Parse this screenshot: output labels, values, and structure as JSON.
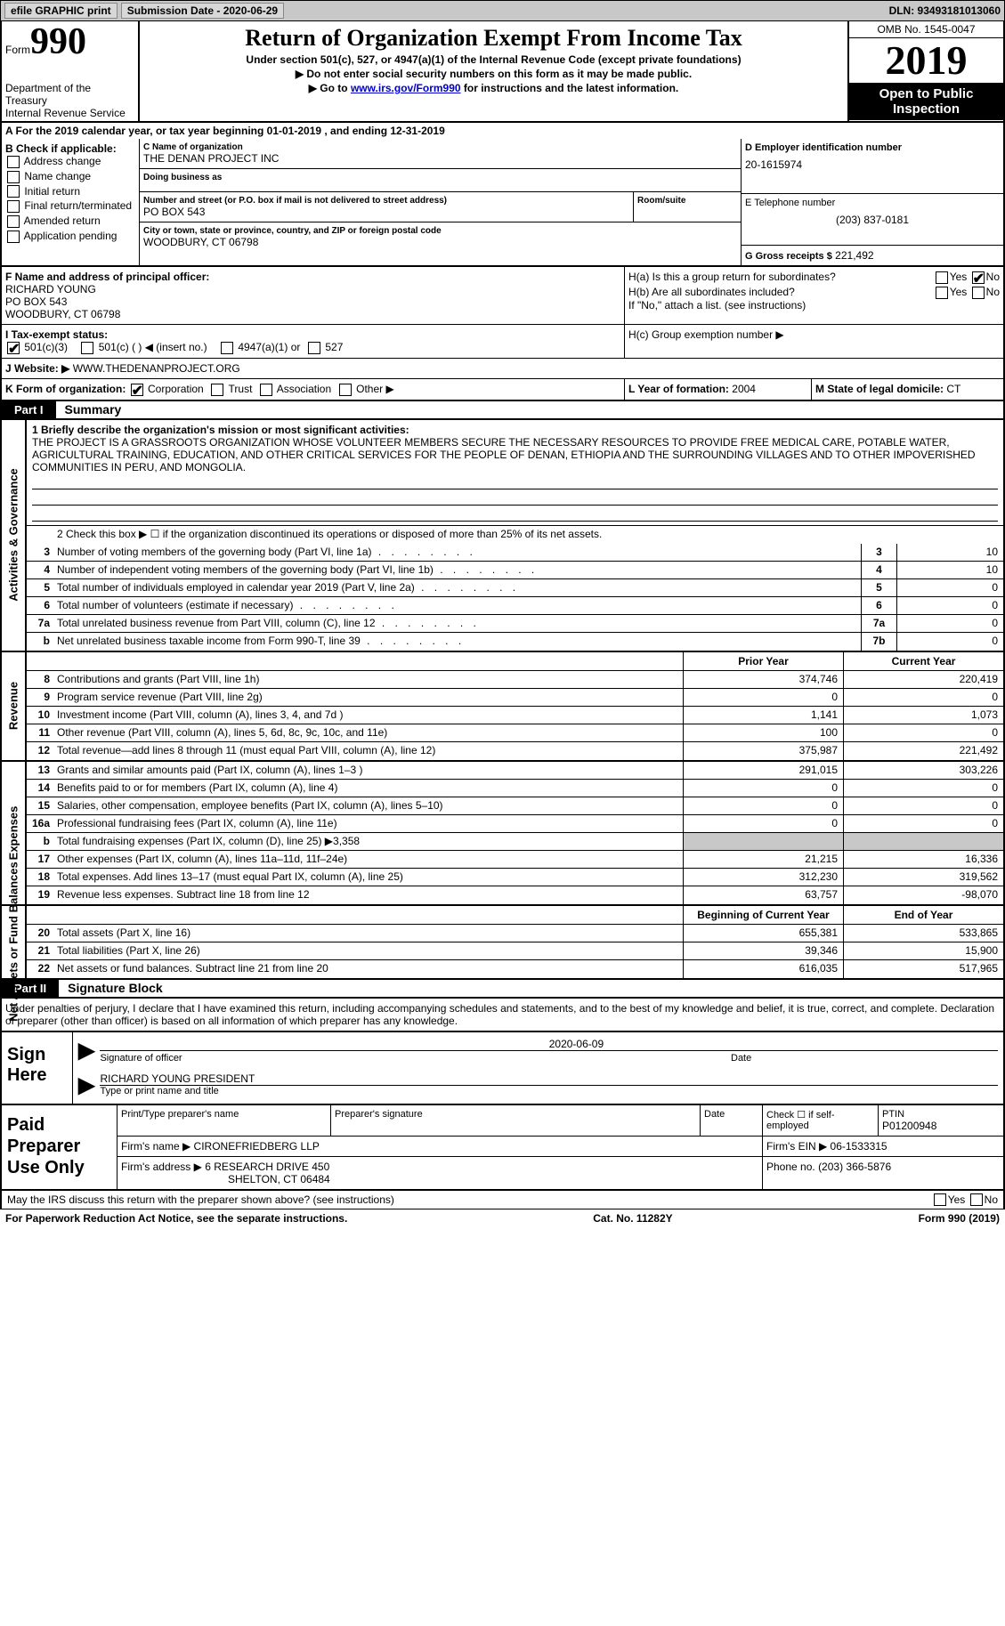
{
  "header_bar": {
    "efile": "efile GRAPHIC print",
    "submission": "Submission Date - 2020-06-29",
    "dln": "DLN: 93493181013060"
  },
  "top": {
    "form_word": "Form",
    "form_num": "990",
    "dept": "Department of the Treasury\nInternal Revenue Service",
    "title": "Return of Organization Exempt From Income Tax",
    "sub": "Under section 501(c), 527, or 4947(a)(1) of the Internal Revenue Code (except private foundations)",
    "instr1": "▶ Do not enter social security numbers on this form as it may be made public.",
    "instr2_pre": "▶ Go to ",
    "instr2_link": "www.irs.gov/Form990",
    "instr2_post": " for instructions and the latest information.",
    "omb": "OMB No. 1545-0047",
    "year": "2019",
    "open": "Open to Public Inspection"
  },
  "line_a": "A For the 2019 calendar year, or tax year beginning 01-01-2019   , and ending 12-31-2019",
  "box_b": {
    "title": "B Check if applicable:",
    "opts": [
      "Address change",
      "Name change",
      "Initial return",
      "Final return/terminated",
      "Amended return",
      "Application pending"
    ],
    "checked": []
  },
  "box_c": {
    "name_label": "C Name of organization",
    "name": "THE DENAN PROJECT INC",
    "dba_label": "Doing business as",
    "dba": "",
    "addr_label": "Number and street (or P.O. box if mail is not delivered to street address)",
    "room_label": "Room/suite",
    "addr": "PO BOX 543",
    "city_label": "City or town, state or province, country, and ZIP or foreign postal code",
    "city": "WOODBURY, CT  06798"
  },
  "box_d": {
    "label": "D Employer identification number",
    "val": "20-1615974"
  },
  "box_e": {
    "label": "E Telephone number",
    "val": "(203) 837-0181"
  },
  "box_g": {
    "label": "G Gross receipts $",
    "val": "221,492"
  },
  "box_f": {
    "label": "F Name and address of principal officer:",
    "name": "RICHARD YOUNG",
    "addr": "PO BOX 543",
    "city": "WOODBURY, CT  06798"
  },
  "box_h": {
    "a": "H(a)  Is this a group return for subordinates?",
    "a_yes": false,
    "a_no": true,
    "b": "H(b)  Are all subordinates included?",
    "b_yes": false,
    "b_no": false,
    "b_note": "If \"No,\" attach a list. (see instructions)",
    "c": "H(c)  Group exemption number ▶"
  },
  "row_i": {
    "label": "I   Tax-exempt status:",
    "c3": true,
    "opts": [
      "501(c)(3)",
      "501(c) (   ) ◀ (insert no.)",
      "4947(a)(1) or",
      "527"
    ]
  },
  "row_j": {
    "label": "J   Website: ▶",
    "val": "WWW.THEDENANPROJECT.ORG"
  },
  "row_k": {
    "label": "K Form of organization:",
    "corp": true,
    "opts": [
      "Corporation",
      "Trust",
      "Association",
      "Other ▶"
    ]
  },
  "row_l": {
    "label": "L Year of formation:",
    "val": "2004"
  },
  "row_m": {
    "label": "M State of legal domicile:",
    "val": "CT"
  },
  "part1": {
    "tab": "Part I",
    "title": "Summary",
    "line1_label": "1   Briefly describe the organization's mission or most significant activities:",
    "line1_text": "THE PROJECT IS A GRASSROOTS ORGANIZATION WHOSE VOLUNTEER MEMBERS SECURE THE NECESSARY RESOURCES TO PROVIDE FREE MEDICAL CARE, POTABLE WATER, AGRICULTURAL TRAINING, EDUCATION, AND OTHER CRITICAL SERVICES FOR THE PEOPLE OF DENAN, ETHIOPIA AND THE SURROUNDING VILLAGES AND TO OTHER IMPOVERISHED COMMUNITIES IN PERU, AND MONGOLIA.",
    "line2": "2   Check this box ▶ ☐  if the organization discontinued its operations or disposed of more than 25% of its net assets.",
    "gov_rows": [
      {
        "n": "3",
        "t": "Number of voting members of the governing body (Part VI, line 1a)",
        "c": "3",
        "v": "10"
      },
      {
        "n": "4",
        "t": "Number of independent voting members of the governing body (Part VI, line 1b)",
        "c": "4",
        "v": "10"
      },
      {
        "n": "5",
        "t": "Total number of individuals employed in calendar year 2019 (Part V, line 2a)",
        "c": "5",
        "v": "0"
      },
      {
        "n": "6",
        "t": "Total number of volunteers (estimate if necessary)",
        "c": "6",
        "v": "0"
      },
      {
        "n": "7a",
        "t": "Total unrelated business revenue from Part VIII, column (C), line 12",
        "c": "7a",
        "v": "0"
      },
      {
        "n": "b",
        "t": "Net unrelated business taxable income from Form 990-T, line 39",
        "c": "7b",
        "v": "0"
      }
    ],
    "prior": "Prior Year",
    "current": "Current Year",
    "rev_rows": [
      {
        "n": "8",
        "t": "Contributions and grants (Part VIII, line 1h)",
        "p": "374,746",
        "c": "220,419"
      },
      {
        "n": "9",
        "t": "Program service revenue (Part VIII, line 2g)",
        "p": "0",
        "c": "0"
      },
      {
        "n": "10",
        "t": "Investment income (Part VIII, column (A), lines 3, 4, and 7d )",
        "p": "1,141",
        "c": "1,073"
      },
      {
        "n": "11",
        "t": "Other revenue (Part VIII, column (A), lines 5, 6d, 8c, 9c, 10c, and 11e)",
        "p": "100",
        "c": "0"
      },
      {
        "n": "12",
        "t": "Total revenue—add lines 8 through 11 (must equal Part VIII, column (A), line 12)",
        "p": "375,987",
        "c": "221,492"
      }
    ],
    "exp_rows": [
      {
        "n": "13",
        "t": "Grants and similar amounts paid (Part IX, column (A), lines 1–3 )",
        "p": "291,015",
        "c": "303,226"
      },
      {
        "n": "14",
        "t": "Benefits paid to or for members (Part IX, column (A), line 4)",
        "p": "0",
        "c": "0"
      },
      {
        "n": "15",
        "t": "Salaries, other compensation, employee benefits (Part IX, column (A), lines 5–10)",
        "p": "0",
        "c": "0"
      },
      {
        "n": "16a",
        "t": "Professional fundraising fees (Part IX, column (A), line 11e)",
        "p": "0",
        "c": "0"
      },
      {
        "n": "b",
        "t": "Total fundraising expenses (Part IX, column (D), line 25) ▶3,358",
        "p": "",
        "c": "",
        "grey": true
      },
      {
        "n": "17",
        "t": "Other expenses (Part IX, column (A), lines 11a–11d, 11f–24e)",
        "p": "21,215",
        "c": "16,336"
      },
      {
        "n": "18",
        "t": "Total expenses. Add lines 13–17 (must equal Part IX, column (A), line 25)",
        "p": "312,230",
        "c": "319,562"
      },
      {
        "n": "19",
        "t": "Revenue less expenses. Subtract line 18 from line 12",
        "p": "63,757",
        "c": "-98,070"
      }
    ],
    "boy": "Beginning of Current Year",
    "eoy": "End of Year",
    "na_rows": [
      {
        "n": "20",
        "t": "Total assets (Part X, line 16)",
        "p": "655,381",
        "c": "533,865"
      },
      {
        "n": "21",
        "t": "Total liabilities (Part X, line 26)",
        "p": "39,346",
        "c": "15,900"
      },
      {
        "n": "22",
        "t": "Net assets or fund balances. Subtract line 21 from line 20",
        "p": "616,035",
        "c": "517,965"
      }
    ]
  },
  "rot_labels": {
    "gov": "Activities & Governance",
    "rev": "Revenue",
    "exp": "Expenses",
    "na": "Net Assets or Fund Balances"
  },
  "part2": {
    "tab": "Part II",
    "title": "Signature Block"
  },
  "perjury": "Under penalties of perjury, I declare that I have examined this return, including accompanying schedules and statements, and to the best of my knowledge and belief, it is true, correct, and complete. Declaration of preparer (other than officer) is based on all information of which preparer has any knowledge.",
  "sign": {
    "label": "Sign Here",
    "sig_label": "Signature of officer",
    "date_label": "Date",
    "date": "2020-06-09",
    "name_label": "Type or print name and title",
    "name": "RICHARD YOUNG  PRESIDENT"
  },
  "prep": {
    "label": "Paid Preparer Use Only",
    "h1": "Print/Type preparer's name",
    "h2": "Preparer's signature",
    "h3": "Date",
    "h4": "Check ☐ if self-employed",
    "h5_label": "PTIN",
    "h5": "P01200948",
    "firm_label": "Firm's name    ▶",
    "firm": "CIRONEFRIEDBERG LLP",
    "ein_label": "Firm's EIN ▶",
    "ein": "06-1533315",
    "addr_label": "Firm's address ▶",
    "addr": "6 RESEARCH DRIVE 450",
    "city": "SHELTON, CT  06484",
    "phone_label": "Phone no.",
    "phone": "(203) 366-5876"
  },
  "discuss": "May the IRS discuss this return with the preparer shown above? (see instructions)",
  "footer": {
    "left": "For Paperwork Reduction Act Notice, see the separate instructions.",
    "mid": "Cat. No. 11282Y",
    "right": "Form 990 (2019)"
  }
}
